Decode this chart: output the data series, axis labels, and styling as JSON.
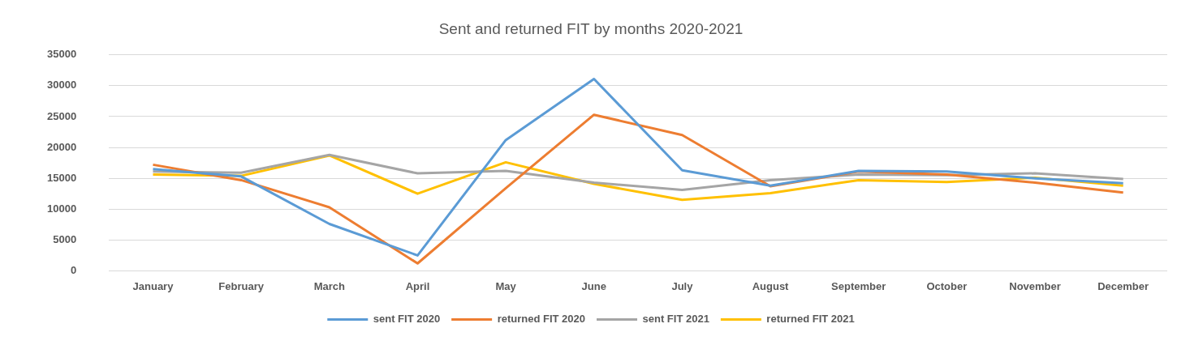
{
  "chart_data": {
    "type": "line",
    "title": "Sent and returned FIT by months 2020-2021",
    "categories": [
      "January",
      "February",
      "March",
      "April",
      "May",
      "June",
      "July",
      "August",
      "September",
      "October",
      "November",
      "December"
    ],
    "series": [
      {
        "name": "sent FIT 2020",
        "color": "#5b9bd5",
        "values": [
          16500,
          15300,
          7600,
          2500,
          21200,
          31100,
          16300,
          13800,
          16200,
          16100,
          15000,
          14200
        ]
      },
      {
        "name": "returned FIT 2020",
        "color": "#ed7d31",
        "values": [
          17200,
          14700,
          10300,
          1200,
          13400,
          25300,
          22000,
          13700,
          16100,
          15600,
          14300,
          12700
        ]
      },
      {
        "name": "sent FIT 2021",
        "color": "#a5a5a5",
        "values": [
          16100,
          15900,
          18800,
          15800,
          16200,
          14300,
          13100,
          14700,
          15600,
          15500,
          15800,
          14900
        ]
      },
      {
        "name": "returned FIT 2021",
        "color": "#ffc000",
        "values": [
          15600,
          15400,
          18700,
          12500,
          17600,
          14100,
          11500,
          12600,
          14700,
          14400,
          15100,
          13800
        ]
      }
    ],
    "ylim": [
      0,
      35000
    ],
    "yticks": [
      0,
      5000,
      10000,
      15000,
      20000,
      25000,
      30000,
      35000
    ],
    "grid": "y",
    "legend": "bottom",
    "marker": "none",
    "line_style": "solid"
  }
}
